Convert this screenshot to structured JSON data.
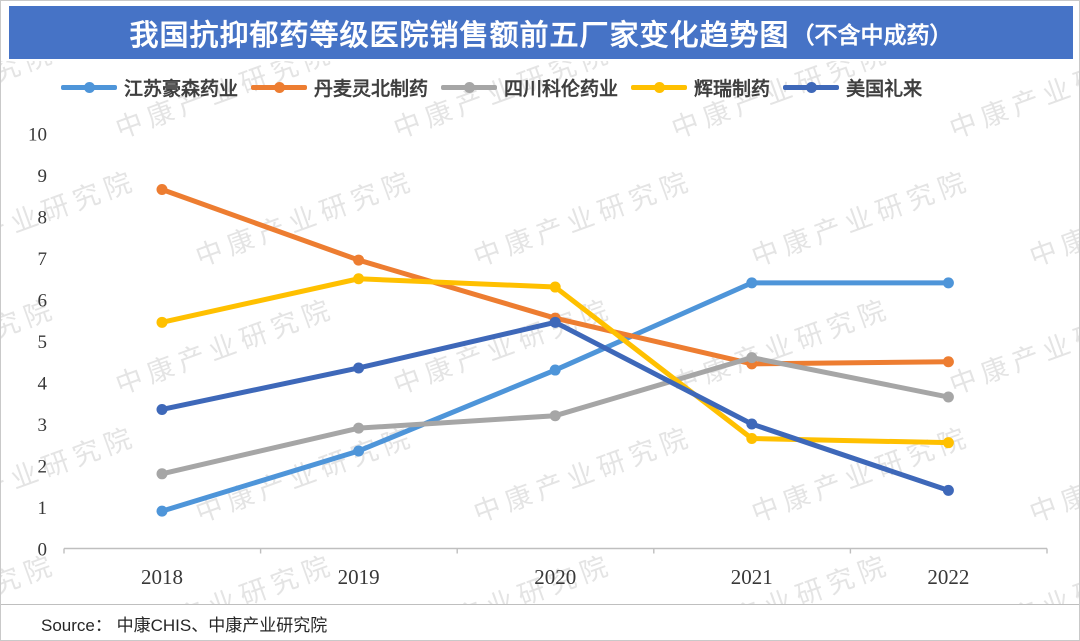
{
  "title": {
    "main": "我国抗抑郁药等级医院销售额前五厂家变化趋势图",
    "suffix": "（不含中成药）"
  },
  "source": {
    "label": "Source：  中康CHIS、中康产业研究院"
  },
  "watermark": {
    "text": "中康产业研究院"
  },
  "colors": {
    "banner": "#4673C6",
    "axis_line": "#BFBFBF",
    "tick_label": "#383838"
  },
  "chart_data": {
    "type": "line",
    "categories": [
      "2018",
      "2019",
      "2020",
      "2021",
      "2022"
    ],
    "series": [
      {
        "name": "江苏豪森药业",
        "color": "#4E95D9",
        "values": [
          0.9,
          2.35,
          4.3,
          6.4,
          6.4
        ]
      },
      {
        "name": "丹麦灵北制药",
        "color": "#ED7D31",
        "values": [
          8.65,
          6.95,
          5.55,
          4.45,
          4.5
        ]
      },
      {
        "name": "四川科伦药业",
        "color": "#A6A6A6",
        "values": [
          1.8,
          2.9,
          3.2,
          4.6,
          3.65
        ]
      },
      {
        "name": "辉瑞制药",
        "color": "#FFC000",
        "values": [
          5.45,
          6.5,
          6.3,
          2.65,
          2.55
        ]
      },
      {
        "name": "美国礼来",
        "color": "#3E68B9",
        "values": [
          3.35,
          4.35,
          5.45,
          3.0,
          1.4
        ]
      }
    ],
    "ylim": [
      0,
      10
    ],
    "yticks": [
      0,
      1,
      2,
      3,
      4,
      5,
      6,
      7,
      8,
      9,
      10
    ],
    "xlabel": "",
    "ylabel": "",
    "legend_position": "top",
    "grid": false
  }
}
